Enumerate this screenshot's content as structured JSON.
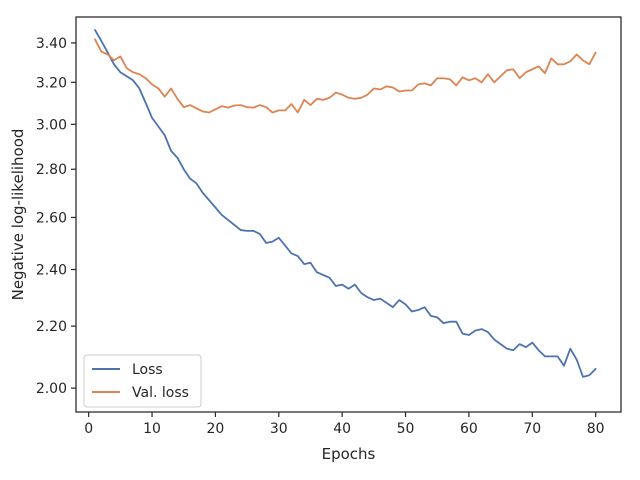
{
  "chart_data": {
    "type": "line",
    "xlabel": "Epochs",
    "ylabel": "Negative log-likelihood",
    "xlim": [
      -2.0,
      84.0
    ],
    "ylim": [
      1.928,
      3.538
    ],
    "y_scale": "log",
    "grid": false,
    "legend_position": "lower-left",
    "xticks": [
      0,
      10,
      20,
      30,
      40,
      50,
      60,
      70,
      80
    ],
    "yticks": [
      2.0,
      2.2,
      2.4,
      2.6,
      2.8,
      3.0,
      3.2,
      3.4
    ],
    "ytick_labels": [
      "2.00",
      "2.20",
      "2.40",
      "2.60",
      "2.80",
      "3.00",
      "3.20",
      "3.40"
    ],
    "x": [
      1,
      2,
      3,
      4,
      5,
      6,
      7,
      8,
      9,
      10,
      11,
      12,
      13,
      14,
      15,
      16,
      17,
      18,
      19,
      20,
      21,
      22,
      23,
      24,
      25,
      26,
      27,
      28,
      29,
      30,
      31,
      32,
      33,
      34,
      35,
      36,
      37,
      38,
      39,
      40,
      41,
      42,
      43,
      44,
      45,
      46,
      47,
      48,
      49,
      50,
      51,
      52,
      53,
      54,
      55,
      56,
      57,
      58,
      59,
      60,
      61,
      62,
      63,
      64,
      65,
      66,
      67,
      68,
      69,
      70,
      71,
      72,
      73,
      74,
      75,
      76,
      77,
      78,
      79,
      80
    ],
    "series": [
      {
        "name": "Loss",
        "color": "#4c72b0",
        "values": [
          3.468,
          3.41,
          3.35,
          3.29,
          3.25,
          3.23,
          3.21,
          3.17,
          3.1,
          3.03,
          2.99,
          2.95,
          2.88,
          2.85,
          2.8,
          2.76,
          2.74,
          2.7,
          2.67,
          2.64,
          2.61,
          2.59,
          2.57,
          2.55,
          2.547,
          2.547,
          2.535,
          2.5,
          2.505,
          2.52,
          2.49,
          2.46,
          2.45,
          2.42,
          2.425,
          2.39,
          2.38,
          2.37,
          2.34,
          2.345,
          2.33,
          2.345,
          2.315,
          2.3,
          2.29,
          2.295,
          2.28,
          2.265,
          2.29,
          2.275,
          2.25,
          2.255,
          2.265,
          2.235,
          2.23,
          2.21,
          2.215,
          2.215,
          2.175,
          2.17,
          2.185,
          2.19,
          2.18,
          2.155,
          2.14,
          2.125,
          2.12,
          2.14,
          2.13,
          2.145,
          2.12,
          2.1,
          2.1,
          2.1,
          2.07,
          2.125,
          2.09,
          2.035,
          2.04,
          2.06
        ]
      },
      {
        "name": "Val. loss",
        "color": "#dd8452",
        "values": [
          3.418,
          3.355,
          3.34,
          3.31,
          3.33,
          3.27,
          3.25,
          3.24,
          3.22,
          3.19,
          3.17,
          3.13,
          3.17,
          3.12,
          3.08,
          3.09,
          3.075,
          3.06,
          3.055,
          3.07,
          3.085,
          3.078,
          3.088,
          3.09,
          3.08,
          3.078,
          3.09,
          3.08,
          3.055,
          3.065,
          3.065,
          3.095,
          3.055,
          3.115,
          3.09,
          3.12,
          3.115,
          3.125,
          3.15,
          3.14,
          3.125,
          3.12,
          3.125,
          3.14,
          3.17,
          3.165,
          3.18,
          3.175,
          3.155,
          3.16,
          3.16,
          3.19,
          3.195,
          3.185,
          3.22,
          3.22,
          3.215,
          3.185,
          3.225,
          3.21,
          3.22,
          3.2,
          3.24,
          3.2,
          3.23,
          3.26,
          3.265,
          3.22,
          3.25,
          3.265,
          3.28,
          3.245,
          3.32,
          3.29,
          3.29,
          3.305,
          3.34,
          3.31,
          3.29,
          3.35
        ]
      }
    ]
  }
}
